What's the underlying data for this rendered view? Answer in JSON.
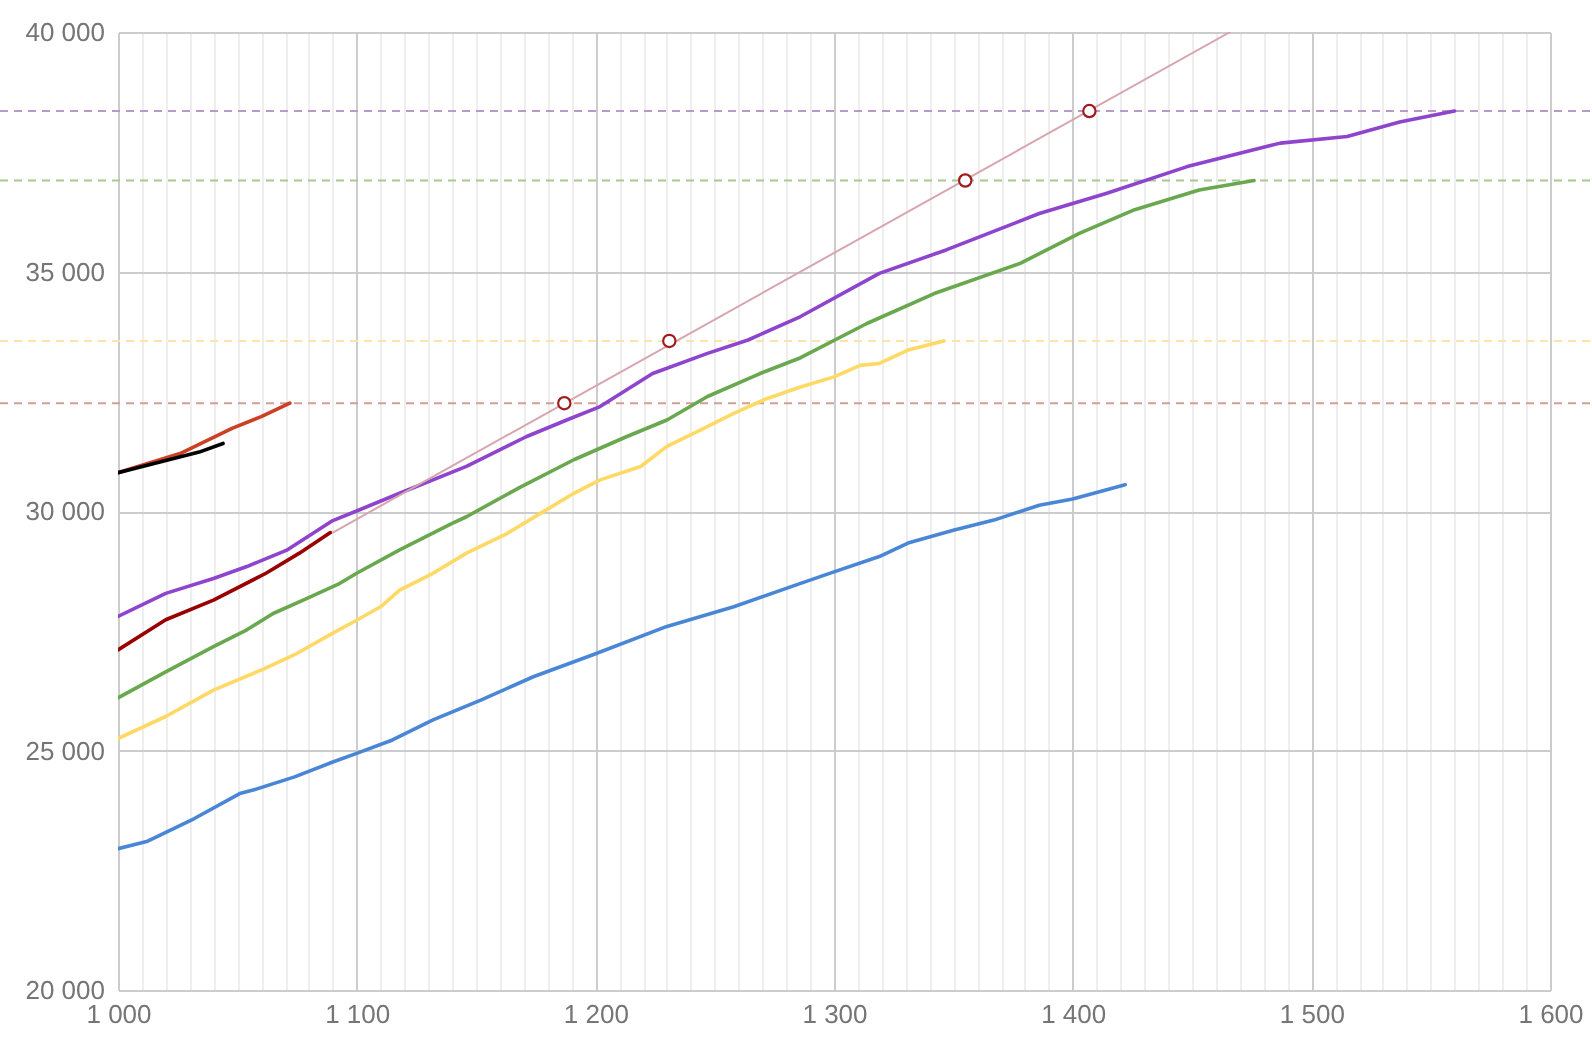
{
  "chart_data": {
    "type": "line",
    "xlim": [
      1000,
      1600
    ],
    "ylim": [
      20000,
      40000
    ],
    "xticks": [
      {
        "value": 1000,
        "label": "1 000"
      },
      {
        "value": 1010,
        "label": null
      },
      {
        "value": 1020,
        "label": null
      },
      {
        "value": 1030,
        "label": null
      },
      {
        "value": 1040,
        "label": null
      },
      {
        "value": 1050,
        "label": null
      },
      {
        "value": 1060,
        "label": null
      },
      {
        "value": 1070,
        "label": null
      },
      {
        "value": 1080,
        "label": null
      },
      {
        "value": 1090,
        "label": null
      },
      {
        "value": 1100,
        "label": "1 100"
      },
      {
        "value": 1110,
        "label": null
      },
      {
        "value": 1120,
        "label": null
      },
      {
        "value": 1130,
        "label": null
      },
      {
        "value": 1140,
        "label": null
      },
      {
        "value": 1150,
        "label": null
      },
      {
        "value": 1160,
        "label": null
      },
      {
        "value": 1170,
        "label": null
      },
      {
        "value": 1180,
        "label": null
      },
      {
        "value": 1190,
        "label": null
      },
      {
        "value": 1200,
        "label": "1 200"
      },
      {
        "value": 1210,
        "label": null
      },
      {
        "value": 1220,
        "label": null
      },
      {
        "value": 1230,
        "label": null
      },
      {
        "value": 1240,
        "label": null
      },
      {
        "value": 1250,
        "label": null
      },
      {
        "value": 1260,
        "label": null
      },
      {
        "value": 1270,
        "label": null
      },
      {
        "value": 1280,
        "label": null
      },
      {
        "value": 1290,
        "label": null
      },
      {
        "value": 1300,
        "label": "1 300"
      },
      {
        "value": 1310,
        "label": null
      },
      {
        "value": 1320,
        "label": null
      },
      {
        "value": 1330,
        "label": null
      },
      {
        "value": 1340,
        "label": null
      },
      {
        "value": 1350,
        "label": null
      },
      {
        "value": 1360,
        "label": null
      },
      {
        "value": 1370,
        "label": null
      },
      {
        "value": 1380,
        "label": null
      },
      {
        "value": 1390,
        "label": null
      },
      {
        "value": 1400,
        "label": "1 400"
      },
      {
        "value": 1410,
        "label": null
      },
      {
        "value": 1420,
        "label": null
      },
      {
        "value": 1430,
        "label": null
      },
      {
        "value": 1440,
        "label": null
      },
      {
        "value": 1450,
        "label": null
      },
      {
        "value": 1460,
        "label": null
      },
      {
        "value": 1470,
        "label": null
      },
      {
        "value": 1480,
        "label": null
      },
      {
        "value": 1490,
        "label": null
      },
      {
        "value": 1500,
        "label": "1 500"
      },
      {
        "value": 1510,
        "label": null
      },
      {
        "value": 1520,
        "label": null
      },
      {
        "value": 1530,
        "label": null
      },
      {
        "value": 1540,
        "label": null
      },
      {
        "value": 1550,
        "label": null
      },
      {
        "value": 1560,
        "label": null
      },
      {
        "value": 1570,
        "label": null
      },
      {
        "value": 1580,
        "label": null
      },
      {
        "value": 1590,
        "label": null
      },
      {
        "value": 1600,
        "label": "1 600"
      }
    ],
    "yticks": [
      {
        "value": 20000,
        "label": "20 000"
      },
      {
        "value": 25000,
        "label": "25 000"
      },
      {
        "value": 30000,
        "label": "30 000"
      },
      {
        "value": 35000,
        "label": "35 000"
      },
      {
        "value": 40000,
        "label": "40 000"
      }
    ],
    "grid": true,
    "ref_lines": [
      {
        "axis": "y",
        "value": 38350,
        "label": null,
        "color": "#b89cc8",
        "line_style": "dashed"
      },
      {
        "axis": "y",
        "value": 36900,
        "label": null,
        "color": "#a8c896",
        "line_style": "dashed"
      },
      {
        "axis": "y",
        "value": 33550,
        "label": null,
        "color": "#ffe4a8",
        "line_style": "dashed"
      },
      {
        "axis": "y",
        "value": 32250,
        "label": null,
        "color": "#d49e94",
        "line_style": "dashed"
      }
    ],
    "series": [
      {
        "color": "#4a86d6",
        "x": [
          1000,
          1012,
          1032,
          1051,
          1057,
          1074,
          1090,
          1100,
          1115,
          1132,
          1152,
          1174,
          1199,
          1230,
          1258,
          1286,
          1300,
          1319,
          1331,
          1350,
          1367,
          1386,
          1400,
          1422
        ],
        "values": [
          22950,
          23100,
          23580,
          24100,
          24180,
          24450,
          24760,
          24940,
          25220,
          25640,
          26050,
          26540,
          27000,
          27590,
          28000,
          28490,
          28730,
          29050,
          29330,
          29600,
          29810,
          30120,
          30250,
          30550
        ]
      },
      {
        "color": "#ffd966",
        "x": [
          1000,
          1020,
          1040,
          1060,
          1074,
          1090,
          1100,
          1110,
          1118,
          1132,
          1146,
          1163,
          1177,
          1191,
          1202,
          1219,
          1230,
          1244,
          1258,
          1272,
          1286,
          1300,
          1311,
          1319,
          1331,
          1346
        ],
        "values": [
          25250,
          25710,
          26260,
          26680,
          27000,
          27450,
          27720,
          28000,
          28350,
          28700,
          29120,
          29530,
          29950,
          30370,
          30650,
          30930,
          31350,
          31690,
          32040,
          32350,
          32590,
          32800,
          33040,
          33080,
          33360,
          33550
        ]
      },
      {
        "color": "#6aa84f",
        "x": [
          1000,
          1020,
          1040,
          1054,
          1065,
          1079,
          1093,
          1100,
          1118,
          1140,
          1146,
          1169,
          1191,
          1213,
          1230,
          1247,
          1269,
          1286,
          1314,
          1342,
          1378,
          1403,
          1426,
          1453,
          1476
        ],
        "values": [
          26100,
          26640,
          27170,
          27520,
          27860,
          28170,
          28490,
          28700,
          29190,
          29740,
          29880,
          30510,
          31070,
          31550,
          31900,
          32390,
          32870,
          33200,
          33920,
          34540,
          35170,
          35800,
          36290,
          36700,
          36900
        ]
      },
      {
        "color": "#8e44cc",
        "x": [
          1000,
          1020,
          1040,
          1054,
          1071,
          1090,
          1100,
          1118,
          1146,
          1171,
          1188,
          1202,
          1224,
          1247,
          1264,
          1286,
          1319,
          1347,
          1386,
          1414,
          1448,
          1487,
          1515,
          1537,
          1560
        ],
        "values": [
          27800,
          28280,
          28590,
          28840,
          29190,
          29800,
          30000,
          30370,
          30930,
          31550,
          31900,
          32180,
          32870,
          33290,
          33570,
          34060,
          34960,
          35450,
          36210,
          36630,
          37190,
          37680,
          37820,
          38120,
          38350
        ]
      },
      {
        "color": "#990000",
        "x": [
          1000,
          1020,
          1040,
          1062,
          1076,
          1089
        ],
        "values": [
          27100,
          27730,
          28140,
          28700,
          29120,
          29550
        ]
      },
      {
        "color": "#cc4125",
        "x": [
          1000,
          1026,
          1048,
          1060,
          1072
        ],
        "values": [
          30800,
          31200,
          31730,
          31970,
          32250
        ]
      },
      {
        "color": "#000000",
        "x": [
          1000,
          1018,
          1034,
          1044
        ],
        "values": [
          30800,
          31030,
          31230,
          31410
        ]
      },
      {
        "type": "line",
        "color": "#d7a5ae",
        "x": [
          1090,
          1466
        ],
        "values": [
          29550,
          40000
        ]
      },
      {
        "type": "scatter",
        "marker": "circle",
        "color": "#a01c1c",
        "x": [
          1187,
          1231,
          1355,
          1407
        ],
        "values": [
          32250,
          33550,
          36900,
          38350
        ]
      }
    ]
  }
}
